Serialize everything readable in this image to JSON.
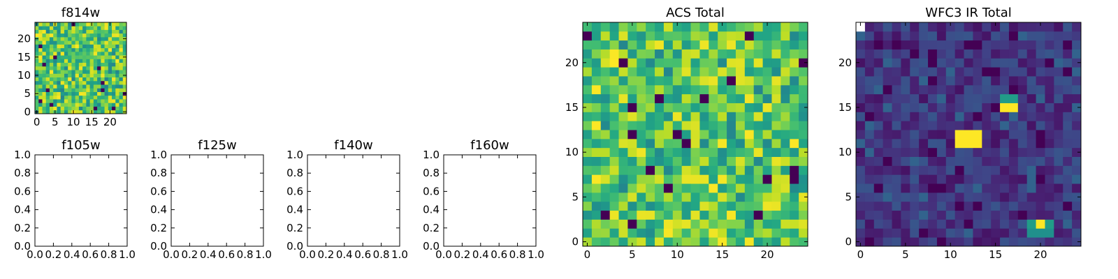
{
  "figure": {
    "colormap": "viridis"
  },
  "chart_data": [
    {
      "type": "heatmap",
      "title": "f814w",
      "grid": [
        25,
        25
      ],
      "xlim": [
        -0.5,
        24.5
      ],
      "ylim": [
        -0.5,
        24.5
      ],
      "xticks": [
        "0",
        "5",
        "10",
        "15",
        "20"
      ],
      "yticks": [
        "0",
        "5",
        "10",
        "15",
        "20"
      ],
      "value_range": [
        0,
        1
      ],
      "seed": 814,
      "values_note": "random field, mostly green/yellow with scattered dark pixels"
    },
    {
      "type": "empty",
      "title": "f105w",
      "xlim": [
        0,
        1
      ],
      "ylim": [
        0,
        1
      ],
      "xticks": [
        "0.0",
        "0.2",
        "0.4",
        "0.6",
        "0.8",
        "1.0"
      ],
      "yticks": [
        "0.0",
        "0.2",
        "0.4",
        "0.6",
        "0.8",
        "1.0"
      ]
    },
    {
      "type": "empty",
      "title": "f125w",
      "xlim": [
        0,
        1
      ],
      "ylim": [
        0,
        1
      ],
      "xticks": [
        "0.0",
        "0.2",
        "0.4",
        "0.6",
        "0.8",
        "1.0"
      ],
      "yticks": [
        "0.0",
        "0.2",
        "0.4",
        "0.6",
        "0.8",
        "1.0"
      ]
    },
    {
      "type": "empty",
      "title": "f140w",
      "xlim": [
        0,
        1
      ],
      "ylim": [
        0,
        1
      ],
      "xticks": [
        "0.0",
        "0.2",
        "0.4",
        "0.6",
        "0.8",
        "1.0"
      ],
      "yticks": [
        "0.0",
        "0.2",
        "0.4",
        "0.6",
        "0.8",
        "1.0"
      ]
    },
    {
      "type": "empty",
      "title": "f160w",
      "xlim": [
        0,
        1
      ],
      "ylim": [
        0,
        1
      ],
      "xticks": [
        "0.0",
        "0.2",
        "0.4",
        "0.6",
        "0.8",
        "1.0"
      ],
      "yticks": [
        "0.0",
        "0.2",
        "0.4",
        "0.6",
        "0.8",
        "1.0"
      ]
    },
    {
      "type": "heatmap",
      "title": "ACS Total",
      "grid": [
        25,
        25
      ],
      "xlim": [
        -0.5,
        24.5
      ],
      "ylim": [
        -0.5,
        24.5
      ],
      "xticks": [
        "0",
        "5",
        "10",
        "15",
        "20"
      ],
      "yticks": [
        "0",
        "5",
        "10",
        "15",
        "20"
      ],
      "value_range": [
        0,
        1
      ],
      "seed": 1234
    },
    {
      "type": "heatmap",
      "title": "WFC3 IR Total",
      "grid": [
        25,
        25
      ],
      "xlim": [
        -0.5,
        24.5
      ],
      "ylim": [
        -0.5,
        24.5
      ],
      "xticks": [
        "0",
        "5",
        "10",
        "15",
        "20"
      ],
      "yticks": [
        "0",
        "5",
        "10",
        "15",
        "20"
      ],
      "value_range": [
        0,
        1
      ],
      "seed": 160,
      "bright_pixels": [
        {
          "x": 11,
          "y": 11,
          "v": 1.0
        },
        {
          "x": 12,
          "y": 11,
          "v": 1.0
        },
        {
          "x": 13,
          "y": 11,
          "v": 1.0
        },
        {
          "x": 11,
          "y": 12,
          "v": 1.0
        },
        {
          "x": 12,
          "y": 12,
          "v": 1.0
        },
        {
          "x": 13,
          "y": 12,
          "v": 1.0
        },
        {
          "x": 16,
          "y": 15,
          "v": 1.0
        },
        {
          "x": 17,
          "y": 15,
          "v": 1.0
        },
        {
          "x": 16,
          "y": 16,
          "v": 0.55
        },
        {
          "x": 17,
          "y": 16,
          "v": 0.55
        },
        {
          "x": 20,
          "y": 2,
          "v": 1.0
        },
        {
          "x": 19,
          "y": 2,
          "v": 0.55
        },
        {
          "x": 21,
          "y": 2,
          "v": 0.55
        },
        {
          "x": 19,
          "y": 1,
          "v": 0.5
        },
        {
          "x": 20,
          "y": 1,
          "v": 0.5
        },
        {
          "x": 21,
          "y": 1,
          "v": 0.5
        },
        {
          "x": 0,
          "y": 24,
          "v": -1
        }
      ]
    }
  ]
}
